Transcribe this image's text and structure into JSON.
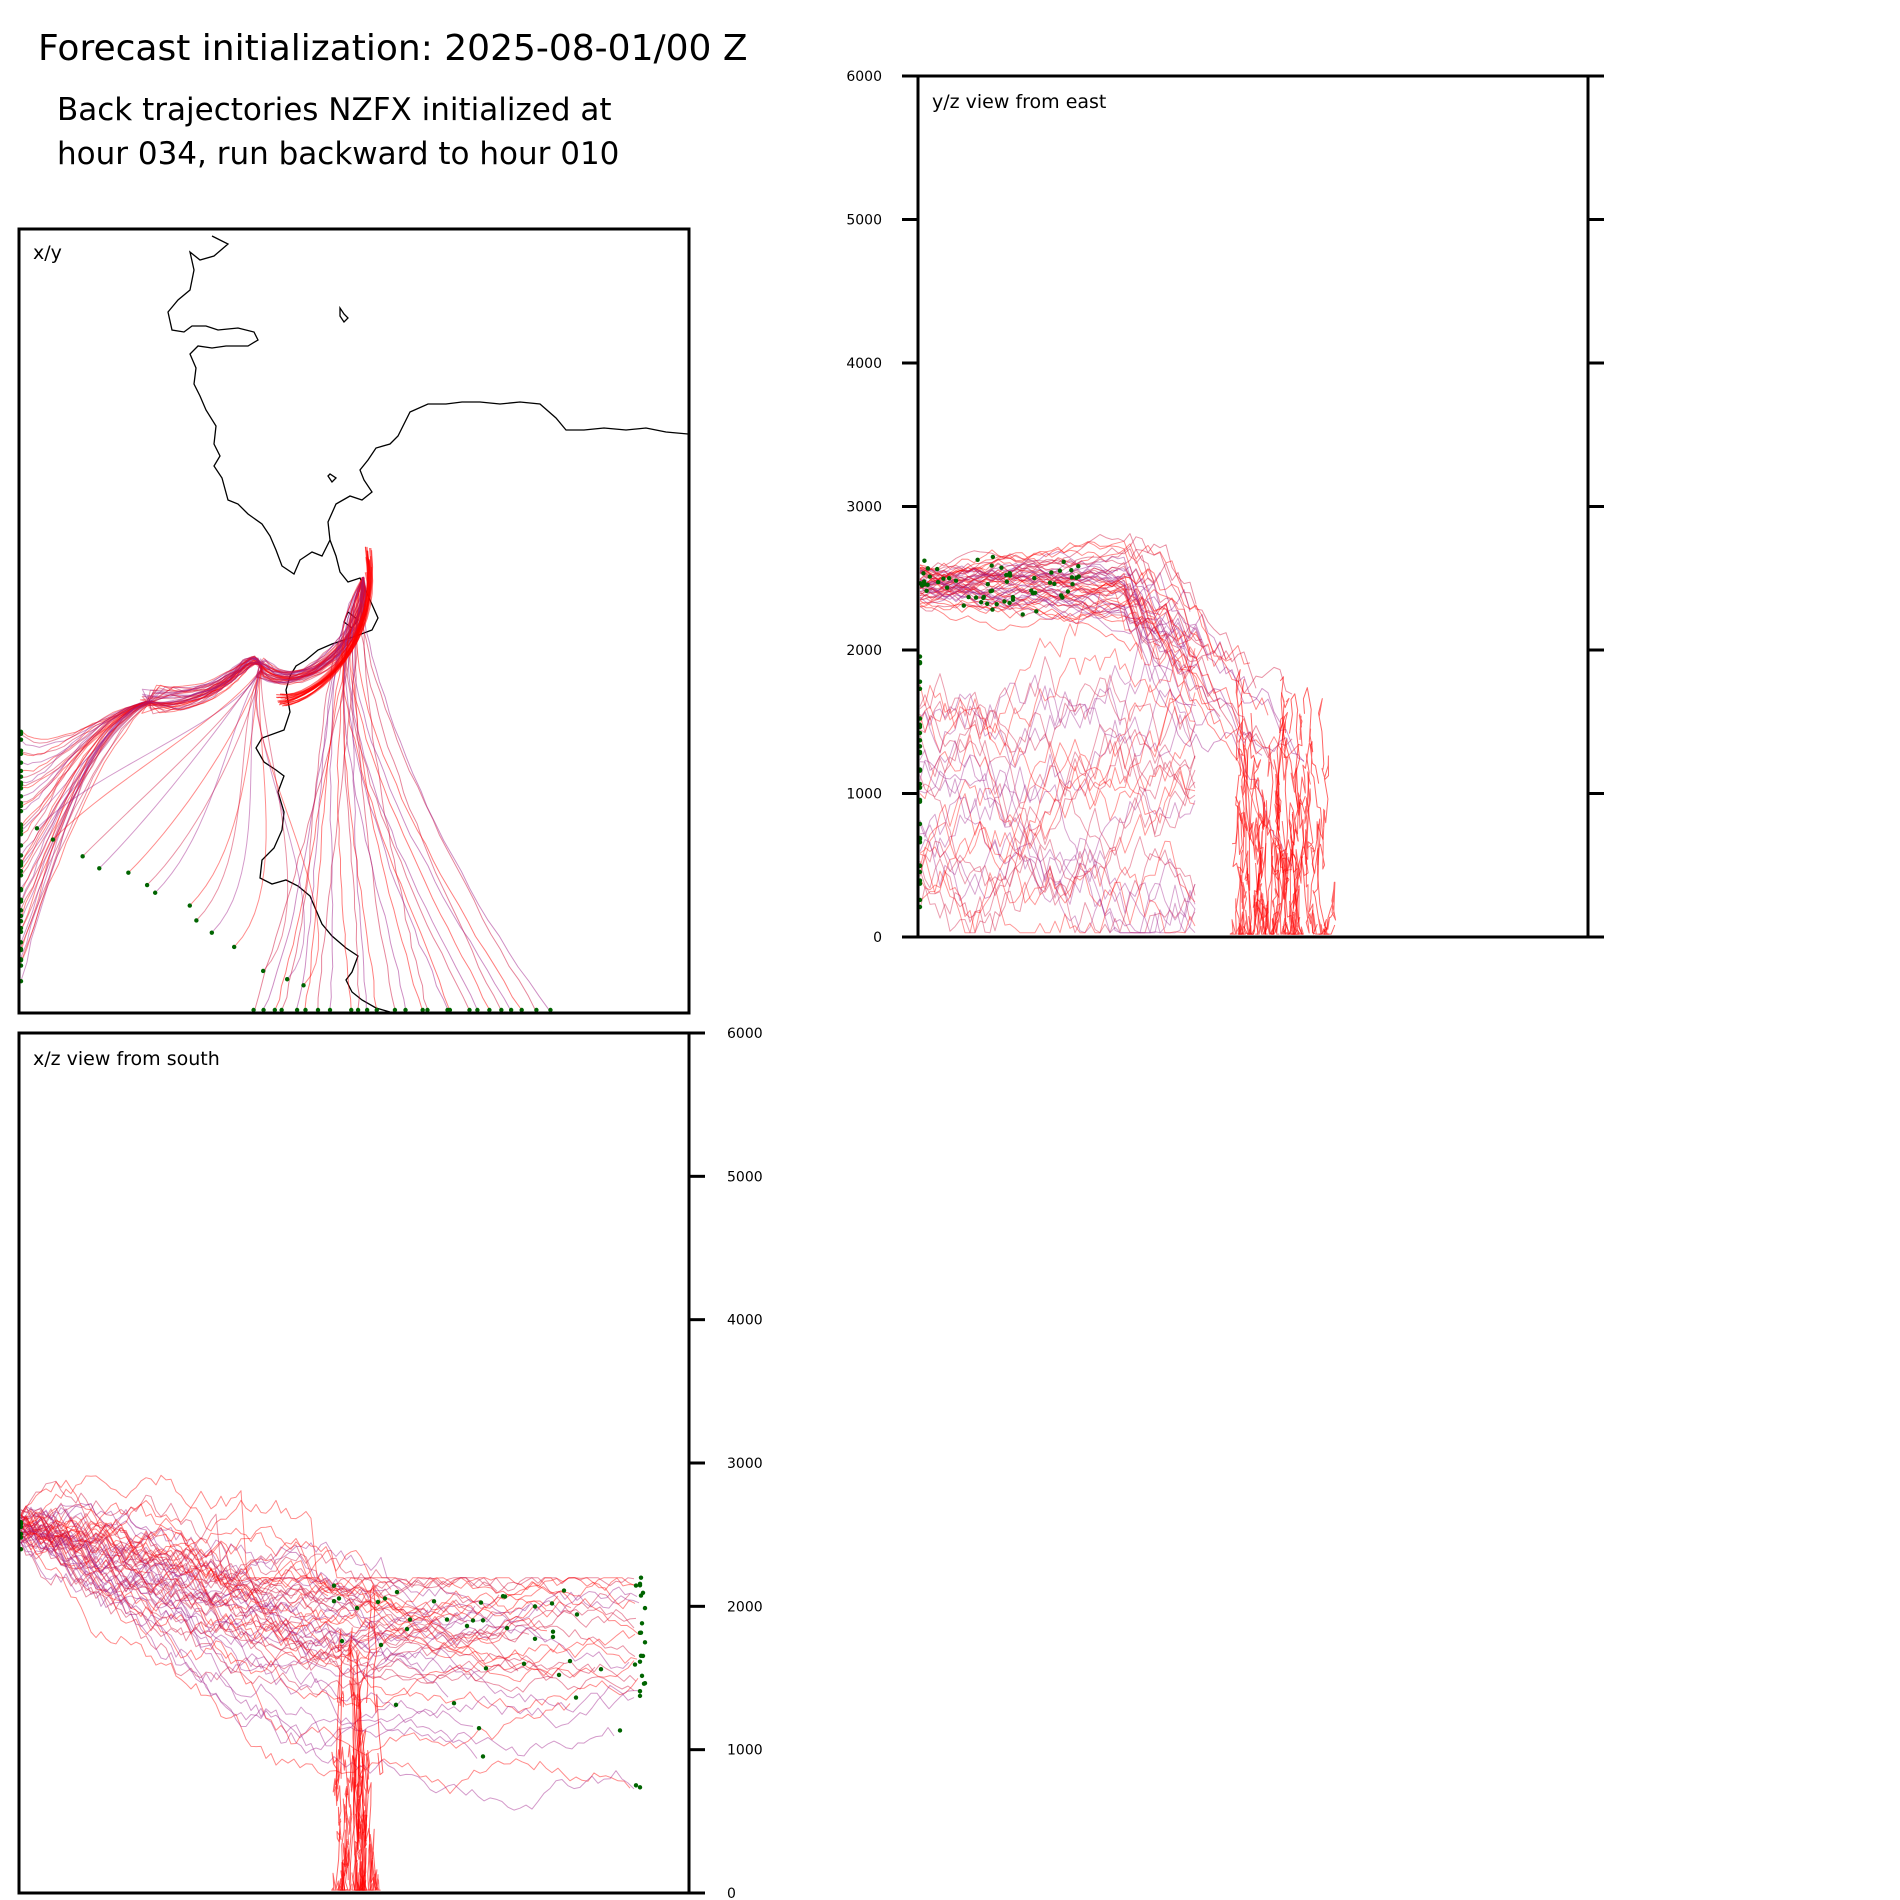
{
  "figure": {
    "title": "Forecast initialization: 2025-08-01/00 Z",
    "subtitle_line1": "Back trajectories NZFX initialized at",
    "subtitle_line2": "hour 034, run backward to hour 010"
  },
  "colors": {
    "trajectory_red": "#ff0000",
    "trajectory_crimson": "#d0103a",
    "trajectory_purple": "#a0208a",
    "endpoint_marker": "#006400",
    "coastline": "#000000",
    "frame": "#000000"
  },
  "chart_data": [
    {
      "type": "line",
      "panel": "x/y",
      "label": "x/y",
      "description_visible": "plan-view back trajectories with coastline",
      "grid": false,
      "legend": "none"
    },
    {
      "type": "line",
      "panel": "y/z",
      "label": "y/z view from east",
      "ylim": [
        0,
        6000
      ],
      "yticks": [
        0,
        1000,
        2000,
        3000,
        4000,
        5000,
        6000
      ],
      "ytick_side": "left",
      "grid": false,
      "legend": "none"
    },
    {
      "type": "line",
      "panel": "x/z",
      "label": "x/z view from south",
      "ylim": [
        0,
        6000
      ],
      "yticks": [
        0,
        1000,
        2000,
        3000,
        4000,
        5000,
        6000
      ],
      "ytick_side": "right",
      "grid": false,
      "legend": "none"
    }
  ]
}
